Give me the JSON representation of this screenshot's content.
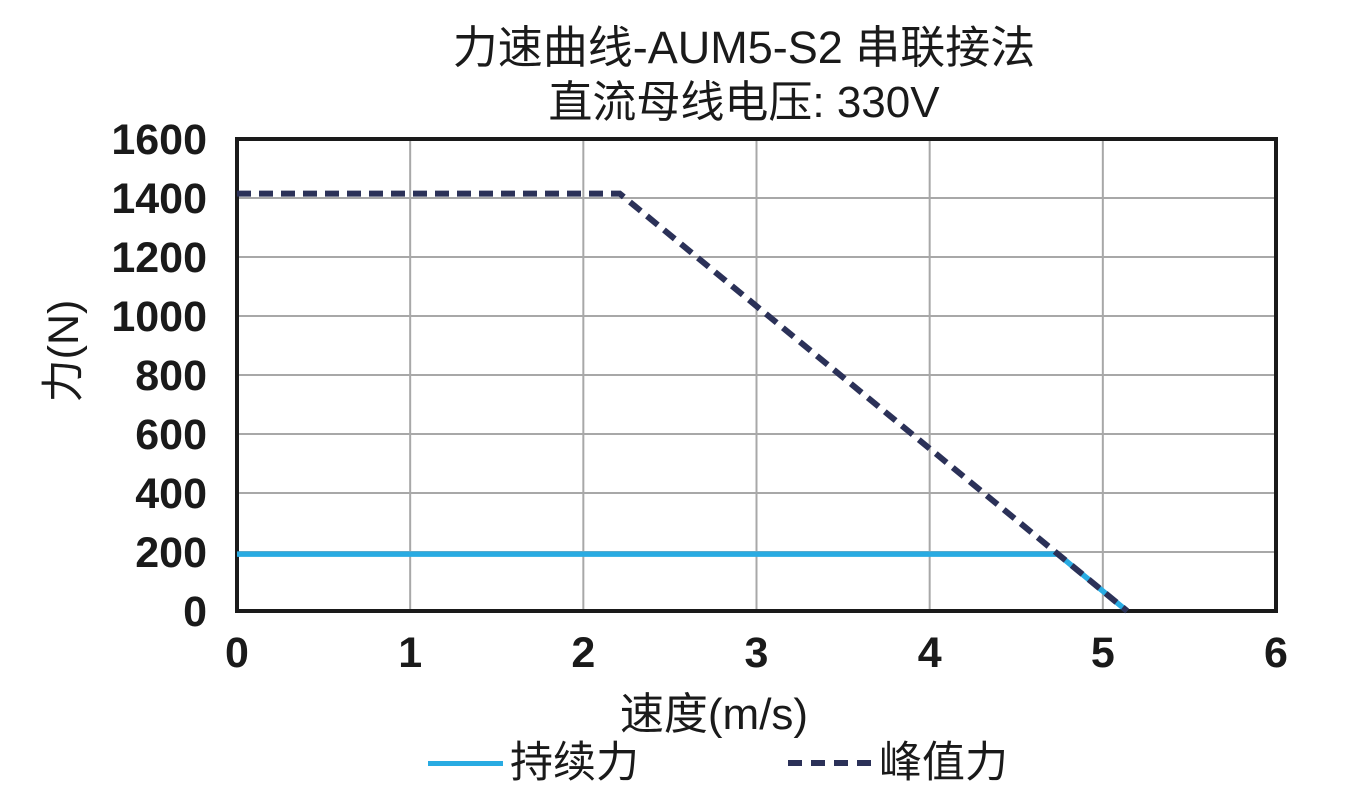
{
  "chart_data": {
    "type": "line",
    "title": "力速曲线-AUM5-S2 串联接法",
    "subtitle": "直流母线电压: 330V",
    "xlabel": "速度(m/s)",
    "ylabel": "力(N)",
    "xlim": [
      0,
      6
    ],
    "ylim": [
      0,
      1600
    ],
    "xticks": [
      0,
      1,
      2,
      3,
      4,
      5,
      6
    ],
    "yticks": [
      0,
      200,
      400,
      600,
      800,
      1000,
      1200,
      1400,
      1600
    ],
    "grid": true,
    "legend_position": "bottom",
    "series": [
      {
        "name": "持续力",
        "style": "solid",
        "color": "#29ABE2",
        "points": [
          [
            0,
            193
          ],
          [
            4.74,
            193
          ],
          [
            5.14,
            0
          ]
        ]
      },
      {
        "name": "峰值力",
        "style": "dashed",
        "color": "#2B3158",
        "points": [
          [
            0,
            1415
          ],
          [
            2.21,
            1415
          ],
          [
            5.14,
            0
          ]
        ]
      }
    ],
    "colors": {
      "grid": "#A8A8A8",
      "border": "#1A1A1A",
      "text": "#1A1A1A"
    }
  }
}
